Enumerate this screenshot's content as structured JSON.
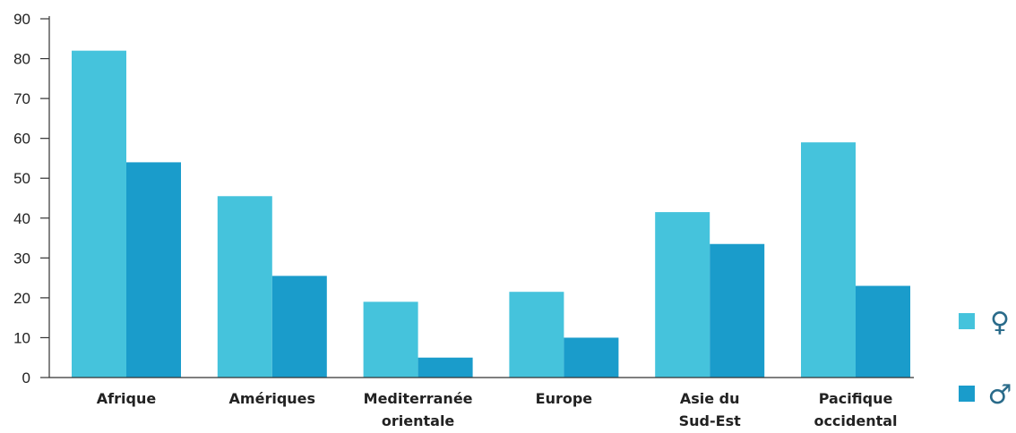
{
  "chart_data": {
    "type": "bar",
    "title": "",
    "xlabel": "",
    "ylabel": "",
    "ylim": [
      0,
      90
    ],
    "yticks": [
      0,
      10,
      20,
      30,
      40,
      50,
      60,
      70,
      80,
      90
    ],
    "grid": false,
    "legend_position": "right",
    "categories": [
      [
        "Afrique"
      ],
      [
        "Amériques"
      ],
      [
        "Mediterranée",
        "orientale"
      ],
      [
        "Europe"
      ],
      [
        "Asie du",
        "Sud-Est"
      ],
      [
        "Pacifique",
        "occidental"
      ]
    ],
    "series": [
      {
        "name": "♀",
        "color": "#45c3dc",
        "values": [
          82,
          45.5,
          19,
          21.5,
          41.5,
          59
        ]
      },
      {
        "name": "♂",
        "color": "#1a9ccb",
        "values": [
          54,
          25.5,
          5,
          10,
          33.5,
          23
        ]
      }
    ]
  }
}
